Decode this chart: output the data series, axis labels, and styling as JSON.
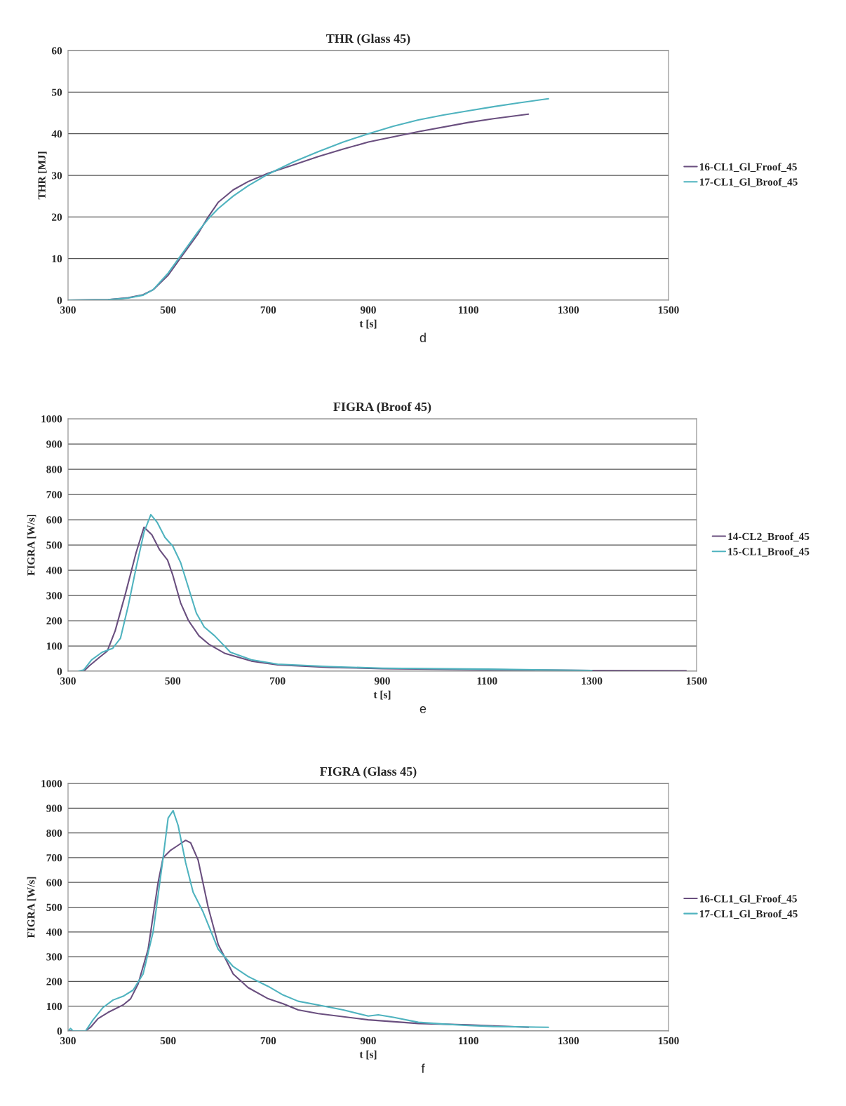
{
  "chart_data": [
    {
      "type": "line",
      "title": "THR (Glass 45)",
      "xlabel": "t [s]",
      "ylabel": "THR [MJ]",
      "annotations": [
        "d"
      ],
      "xlim": [
        300,
        1500
      ],
      "xticks": [
        300,
        500,
        700,
        900,
        1100,
        1300,
        1500
      ],
      "ylim": [
        0,
        60
      ],
      "yticks": [
        0,
        10,
        20,
        30,
        40,
        50,
        60
      ],
      "grid": "y",
      "legend": "right",
      "series": [
        {
          "name": "16-CL1_Gl_Froof_45",
          "color": "#6a4f7f",
          "x": [
            300,
            380,
            420,
            450,
            470,
            500,
            530,
            560,
            580,
            600,
            630,
            660,
            700,
            750,
            800,
            850,
            900,
            1000,
            1100,
            1150,
            1220
          ],
          "values": [
            0,
            0.1,
            0.6,
            1.3,
            2.5,
            6,
            11,
            16,
            20,
            23.5,
            26.5,
            28.5,
            30.5,
            32.5,
            34.5,
            36.3,
            38,
            40.5,
            42.7,
            43.6,
            44.7
          ]
        },
        {
          "name": "17-CL1_Gl_Broof_45",
          "color": "#4fb3bf",
          "x": [
            300,
            380,
            420,
            450,
            470,
            500,
            530,
            560,
            580,
            600,
            630,
            660,
            700,
            750,
            800,
            850,
            900,
            950,
            1000,
            1050,
            1100,
            1150,
            1200,
            1260
          ],
          "values": [
            0,
            0.1,
            0.5,
            1.2,
            2.5,
            6.5,
            11.5,
            16.5,
            19.5,
            22,
            25,
            27.5,
            30.3,
            33.2,
            35.7,
            38,
            40,
            41.8,
            43.3,
            44.5,
            45.5,
            46.5,
            47.4,
            48.4
          ]
        }
      ]
    },
    {
      "type": "line",
      "title": "FIGRA (Broof 45)",
      "xlabel": "t [s]",
      "ylabel": "FIGRA [W/s]",
      "annotations": [
        "e"
      ],
      "xlim": [
        300,
        1500
      ],
      "xticks": [
        300,
        500,
        700,
        900,
        1100,
        1300,
        1500
      ],
      "ylim": [
        0,
        1000
      ],
      "yticks": [
        0,
        100,
        200,
        300,
        400,
        500,
        600,
        700,
        800,
        900,
        1000
      ],
      "grid": "y",
      "legend": "right",
      "series": [
        {
          "name": "14-CL2_Broof_45",
          "color": "#6a4f7f",
          "x": [
            330,
            340,
            360,
            375,
            390,
            410,
            430,
            445,
            460,
            475,
            490,
            500,
            515,
            530,
            550,
            570,
            600,
            650,
            700,
            800,
            900,
            1100,
            1300,
            1480
          ],
          "values": [
            0,
            20,
            55,
            80,
            160,
            310,
            470,
            570,
            540,
            480,
            440,
            380,
            270,
            200,
            140,
            105,
            70,
            40,
            25,
            15,
            10,
            6,
            3,
            2
          ]
        },
        {
          "name": "15-CL1_Broof_45",
          "color": "#4fb3bf",
          "x": [
            320,
            330,
            345,
            365,
            385,
            400,
            415,
            430,
            445,
            458,
            470,
            485,
            500,
            515,
            530,
            545,
            560,
            580,
            610,
            650,
            700,
            800,
            900,
            1100,
            1300
          ],
          "values": [
            0,
            5,
            45,
            75,
            90,
            130,
            260,
            410,
            550,
            620,
            590,
            530,
            495,
            430,
            330,
            230,
            175,
            140,
            75,
            45,
            28,
            18,
            12,
            8,
            3
          ]
        }
      ]
    },
    {
      "type": "line",
      "title": "FIGRA (Glass 45)",
      "xlabel": "t [s]",
      "ylabel": "FIGRA [W/s]",
      "annotations": [
        "f"
      ],
      "xlim": [
        300,
        1500
      ],
      "xticks": [
        300,
        500,
        700,
        900,
        1100,
        1300,
        1500
      ],
      "ylim": [
        0,
        1000
      ],
      "yticks": [
        0,
        100,
        200,
        300,
        400,
        500,
        600,
        700,
        800,
        900,
        1000
      ],
      "grid": "y",
      "legend": "right",
      "series": [
        {
          "name": "16-CL1_Gl_Froof_45",
          "color": "#6a4f7f",
          "x": [
            300,
            335,
            345,
            360,
            380,
            410,
            425,
            440,
            460,
            480,
            490,
            505,
            520,
            535,
            545,
            560,
            580,
            600,
            630,
            660,
            700,
            730,
            760,
            800,
            900,
            1000,
            1100,
            1220
          ],
          "values": [
            0,
            0,
            15,
            50,
            75,
            105,
            130,
            190,
            330,
            600,
            700,
            730,
            750,
            770,
            760,
            690,
            500,
            350,
            230,
            175,
            130,
            110,
            85,
            70,
            45,
            30,
            25,
            15
          ]
        },
        {
          "name": "17-CL1_Gl_Broof_45",
          "color": "#4fb3bf",
          "x": [
            300,
            305,
            310,
            335,
            350,
            370,
            390,
            410,
            430,
            450,
            470,
            490,
            500,
            510,
            520,
            535,
            550,
            570,
            600,
            630,
            660,
            700,
            730,
            760,
            800,
            850,
            900,
            920,
            950,
            1000,
            1050,
            1100,
            1150,
            1260
          ],
          "values": [
            0,
            10,
            0,
            0,
            45,
            95,
            125,
            140,
            165,
            230,
            400,
            700,
            860,
            890,
            830,
            680,
            560,
            480,
            330,
            260,
            220,
            180,
            145,
            120,
            105,
            85,
            60,
            65,
            55,
            35,
            28,
            22,
            18,
            15
          ]
        }
      ]
    }
  ]
}
